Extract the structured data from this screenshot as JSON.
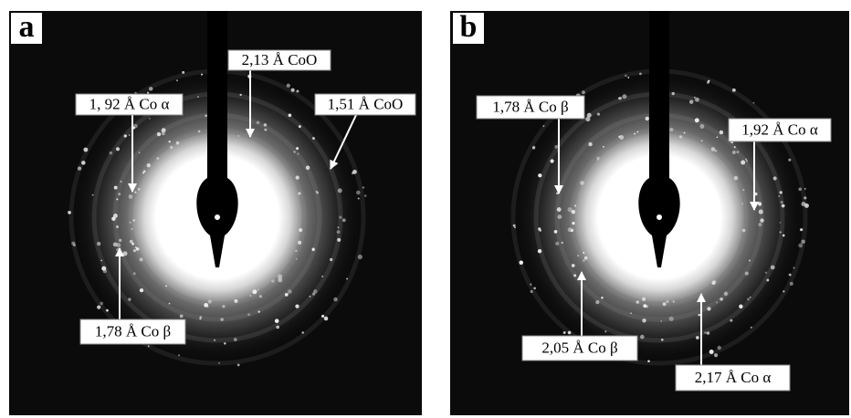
{
  "panels": [
    {
      "letter": "a",
      "labels": [
        "2,13 Å CoO",
        "1, 92 Å Co α",
        "1,51 Å CoO",
        "1,78 Å Co β"
      ]
    },
    {
      "letter": "b",
      "labels": [
        "1,78 Å Co β",
        "1,92 Å Co α",
        "2,05 Å  Co β",
        "2,17 Å Co α"
      ]
    }
  ]
}
